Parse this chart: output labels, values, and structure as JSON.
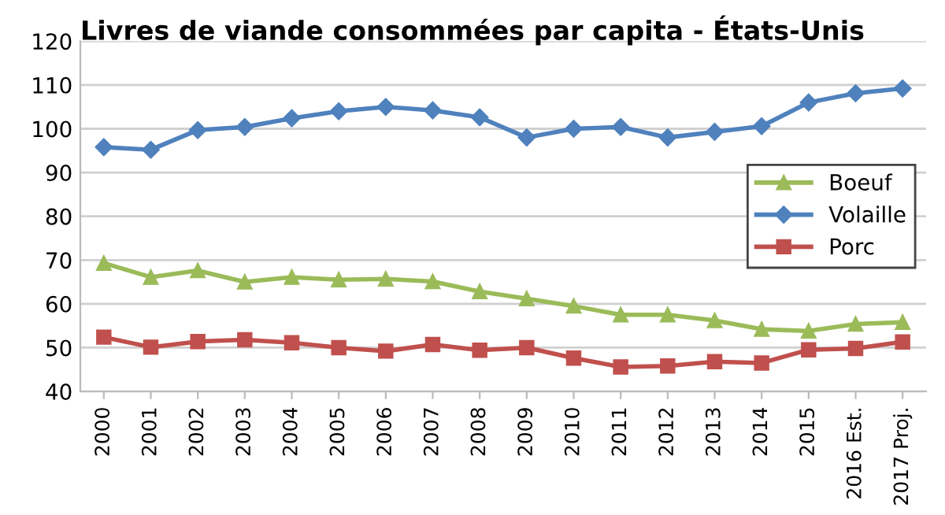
{
  "chart_data": {
    "type": "line",
    "title": "Livres de viande consommées par capita - États-Unis",
    "categories": [
      "2000",
      "2001",
      "2002",
      "2003",
      "2004",
      "2005",
      "2006",
      "2007",
      "2008",
      "2009",
      "2010",
      "2011",
      "2012",
      "2013",
      "2014",
      "2015",
      "2016 Est.",
      "2017 Proj."
    ],
    "series": [
      {
        "name": "Boeuf",
        "color": "#9bbb59",
        "marker": "triangle",
        "values": [
          69.3,
          66.1,
          67.6,
          65.0,
          66.1,
          65.5,
          65.7,
          65.1,
          62.8,
          61.2,
          59.5,
          57.5,
          57.5,
          56.2,
          54.2,
          53.8,
          55.4,
          55.8
        ]
      },
      {
        "name": "Volaille",
        "color": "#4f81bd",
        "marker": "diamond",
        "values": [
          95.8,
          95.2,
          99.7,
          100.4,
          102.4,
          104.0,
          105.0,
          104.2,
          102.6,
          98.0,
          100.0,
          100.4,
          98.0,
          99.3,
          100.6,
          106.0,
          108.1,
          109.2
        ]
      },
      {
        "name": "Porc",
        "color": "#c0504d",
        "marker": "square",
        "values": [
          52.4,
          50.1,
          51.4,
          51.8,
          51.1,
          50.0,
          49.2,
          50.7,
          49.4,
          50.0,
          47.6,
          45.6,
          45.8,
          46.8,
          46.5,
          49.5,
          49.8,
          51.3
        ]
      }
    ],
    "ylim": [
      40,
      120
    ],
    "yticks": [
      40,
      50,
      60,
      70,
      80,
      90,
      100,
      110,
      120
    ],
    "grid": "y",
    "legend": "right",
    "line_style": "solid"
  }
}
